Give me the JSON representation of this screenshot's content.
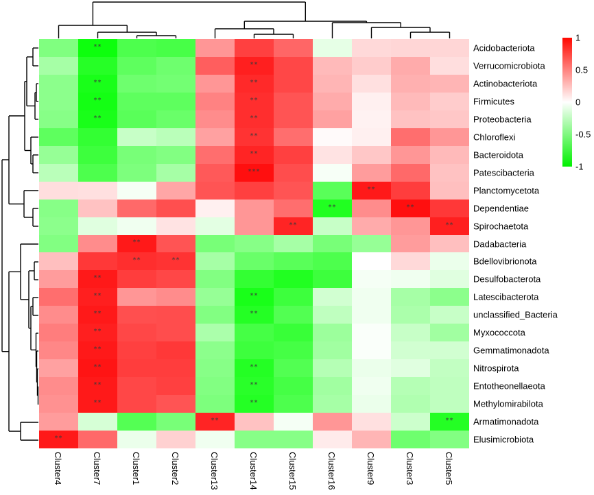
{
  "chart_data": {
    "type": "heatmap",
    "title": "",
    "legend_position": "right-top",
    "colormap": {
      "low": "#00ff00",
      "mid": "#ffffff",
      "high": "#ff0000",
      "range": [
        -1,
        1
      ]
    },
    "legend": {
      "tick_labels": [
        "1",
        "0.5",
        "0",
        "-0.5",
        "-1"
      ],
      "tick_values": [
        1,
        0.5,
        0,
        -0.5,
        -1
      ]
    },
    "columns": [
      "Cluster4",
      "Cluster7",
      "Cluster1",
      "Cluster2",
      "Cluster13",
      "Cluster14",
      "Cluster15",
      "Cluster16",
      "Cluster9",
      "Cluster3",
      "Cluster5"
    ],
    "rows": [
      "Acidobacteriota",
      "Verrucomicrobiota",
      "Actinobacteriota",
      "Firmicutes",
      "Proteobacteria",
      "Chloroflexi",
      "Bacteroidota",
      "Patescibacteria",
      "Planctomycetota",
      "Dependentiae",
      "Spirochaetota",
      "Dadabacteria",
      "Bdellovibrionota",
      "Desulfobacterota",
      "Latescibacterota",
      "unclassified_Bacteria",
      "Myxococcota",
      "Gemmatimonadota",
      "Nitrospirota",
      "Entotheonellaeota",
      "Methylomirabilota",
      "Armatimonadota",
      "Elusimicrobiota"
    ],
    "matrix": [
      [
        -0.5,
        -0.95,
        -0.7,
        -0.72,
        0.41,
        0.75,
        0.6,
        -0.1,
        0.15,
        0.16,
        0.16
      ],
      [
        -0.35,
        -0.85,
        -0.63,
        -0.57,
        0.63,
        0.88,
        0.72,
        0.27,
        0.2,
        0.33,
        0.13
      ],
      [
        -0.45,
        -0.9,
        -0.57,
        -0.55,
        0.41,
        0.84,
        0.72,
        0.29,
        0.12,
        0.31,
        0.29
      ],
      [
        -0.45,
        -0.92,
        -0.63,
        -0.63,
        0.49,
        0.82,
        0.67,
        0.33,
        0.06,
        0.27,
        0.2
      ],
      [
        -0.47,
        -0.9,
        -0.65,
        -0.59,
        0.45,
        0.82,
        0.67,
        0.37,
        0.05,
        0.24,
        0.22
      ],
      [
        -0.63,
        -0.8,
        -0.22,
        -0.27,
        0.37,
        0.8,
        0.57,
        0.02,
        0.06,
        0.57,
        0.41
      ],
      [
        -0.41,
        -0.76,
        -0.53,
        -0.49,
        0.57,
        0.86,
        0.75,
        0.11,
        0.22,
        0.41,
        0.27
      ],
      [
        -0.27,
        -0.7,
        -0.51,
        -0.35,
        0.65,
        0.94,
        0.7,
        -0.03,
        0.39,
        0.59,
        0.24
      ],
      [
        0.13,
        0.12,
        -0.04,
        0.35,
        0.67,
        0.75,
        0.67,
        -0.65,
        0.9,
        0.76,
        0.25
      ],
      [
        -0.47,
        0.24,
        0.59,
        0.69,
        0.06,
        0.41,
        0.57,
        -0.87,
        0.45,
        0.94,
        0.78
      ],
      [
        -0.45,
        -0.12,
        -0.06,
        0.11,
        -0.11,
        0.41,
        0.86,
        -0.22,
        0.33,
        0.41,
        0.88
      ],
      [
        -0.49,
        0.45,
        0.9,
        0.67,
        -0.53,
        -0.47,
        -0.35,
        -0.53,
        -0.41,
        0.39,
        0.25
      ],
      [
        0.25,
        0.78,
        0.82,
        0.8,
        -0.35,
        -0.59,
        -0.65,
        -0.7,
        0.0,
        0.15,
        -0.08
      ],
      [
        0.39,
        0.9,
        0.76,
        0.72,
        -0.49,
        -0.8,
        -0.87,
        -0.76,
        -0.04,
        -0.06,
        -0.12
      ],
      [
        0.57,
        0.88,
        0.41,
        0.45,
        -0.41,
        -0.9,
        -0.76,
        -0.18,
        -0.06,
        -0.35,
        -0.45
      ],
      [
        0.45,
        0.9,
        0.69,
        0.7,
        -0.49,
        -0.86,
        -0.68,
        -0.25,
        -0.06,
        -0.33,
        -0.22
      ],
      [
        0.51,
        0.88,
        0.72,
        0.7,
        -0.33,
        -0.73,
        -0.78,
        -0.39,
        -0.02,
        -0.22,
        -0.37
      ],
      [
        0.47,
        0.9,
        0.75,
        0.78,
        -0.45,
        -0.76,
        -0.73,
        -0.37,
        -0.02,
        -0.18,
        -0.18
      ],
      [
        0.37,
        0.92,
        0.76,
        0.76,
        -0.47,
        -0.86,
        -0.68,
        -0.29,
        -0.08,
        -0.12,
        -0.24
      ],
      [
        0.45,
        0.9,
        0.72,
        0.75,
        -0.49,
        -0.84,
        -0.73,
        -0.37,
        -0.06,
        -0.29,
        -0.25
      ],
      [
        0.43,
        0.9,
        0.72,
        0.67,
        -0.51,
        -0.86,
        -0.7,
        -0.35,
        -0.08,
        -0.31,
        -0.25
      ],
      [
        0.39,
        -0.16,
        -0.67,
        -0.53,
        0.86,
        0.24,
        -0.04,
        0.41,
        0.12,
        -0.2,
        -0.86
      ],
      [
        0.9,
        0.59,
        -0.08,
        0.18,
        -0.06,
        -0.47,
        -0.47,
        0.08,
        0.29,
        -0.57,
        -0.49
      ]
    ],
    "significance_marks": [
      {
        "row": 0,
        "col": 1,
        "mark": "**"
      },
      {
        "row": 1,
        "col": 5,
        "mark": "**"
      },
      {
        "row": 2,
        "col": 1,
        "mark": "**"
      },
      {
        "row": 2,
        "col": 5,
        "mark": "**"
      },
      {
        "row": 3,
        "col": 1,
        "mark": "**"
      },
      {
        "row": 3,
        "col": 5,
        "mark": "**"
      },
      {
        "row": 4,
        "col": 1,
        "mark": "**"
      },
      {
        "row": 4,
        "col": 5,
        "mark": "**"
      },
      {
        "row": 5,
        "col": 5,
        "mark": "**"
      },
      {
        "row": 6,
        "col": 5,
        "mark": "**"
      },
      {
        "row": 7,
        "col": 5,
        "mark": "***"
      },
      {
        "row": 8,
        "col": 8,
        "mark": "**"
      },
      {
        "row": 9,
        "col": 7,
        "mark": "**"
      },
      {
        "row": 9,
        "col": 9,
        "mark": "**"
      },
      {
        "row": 10,
        "col": 6,
        "mark": "**"
      },
      {
        "row": 10,
        "col": 10,
        "mark": "**"
      },
      {
        "row": 11,
        "col": 2,
        "mark": "**"
      },
      {
        "row": 12,
        "col": 2,
        "mark": "**"
      },
      {
        "row": 12,
        "col": 3,
        "mark": "**"
      },
      {
        "row": 13,
        "col": 1,
        "mark": "**"
      },
      {
        "row": 14,
        "col": 1,
        "mark": "**"
      },
      {
        "row": 14,
        "col": 5,
        "mark": "**"
      },
      {
        "row": 15,
        "col": 1,
        "mark": "**"
      },
      {
        "row": 15,
        "col": 5,
        "mark": "**"
      },
      {
        "row": 16,
        "col": 1,
        "mark": "**"
      },
      {
        "row": 17,
        "col": 1,
        "mark": "**"
      },
      {
        "row": 18,
        "col": 1,
        "mark": "**"
      },
      {
        "row": 18,
        "col": 5,
        "mark": "**"
      },
      {
        "row": 19,
        "col": 1,
        "mark": "**"
      },
      {
        "row": 19,
        "col": 5,
        "mark": "**"
      },
      {
        "row": 20,
        "col": 1,
        "mark": "**"
      },
      {
        "row": 20,
        "col": 5,
        "mark": "**"
      },
      {
        "row": 21,
        "col": 4,
        "mark": "**"
      },
      {
        "row": 21,
        "col": 10,
        "mark": "**"
      },
      {
        "row": 22,
        "col": 0,
        "mark": "**"
      }
    ],
    "column_dendrogram_segments": [
      [
        199.5,
        56,
        199.5,
        52
      ],
      [
        256.5,
        56,
        256.5,
        52
      ],
      [
        199.5,
        52,
        256.5,
        52
      ],
      [
        142.5,
        56,
        142.5,
        47
      ],
      [
        228,
        52,
        228,
        47
      ],
      [
        142.5,
        47,
        228,
        47
      ],
      [
        85.5,
        56,
        85.5,
        37
      ],
      [
        185.3,
        47,
        185.3,
        37
      ],
      [
        85.5,
        37,
        185.3,
        37
      ],
      [
        370.5,
        56,
        370.5,
        50
      ],
      [
        427.5,
        56,
        427.5,
        50
      ],
      [
        370.5,
        50,
        427.5,
        50
      ],
      [
        313.5,
        56,
        313.5,
        42
      ],
      [
        399,
        50,
        399,
        42
      ],
      [
        313.5,
        42,
        399,
        42
      ],
      [
        598.5,
        56,
        598.5,
        47
      ],
      [
        655.5,
        56,
        655.5,
        47
      ],
      [
        598.5,
        47,
        655.5,
        47
      ],
      [
        541.5,
        56,
        541.5,
        40
      ],
      [
        627,
        47,
        627,
        40
      ],
      [
        541.5,
        40,
        627,
        40
      ],
      [
        484.5,
        56,
        484.5,
        33
      ],
      [
        584.3,
        40,
        584.3,
        33
      ],
      [
        484.5,
        33,
        584.3,
        33
      ],
      [
        356.3,
        42,
        356.3,
        31
      ],
      [
        534.4,
        33,
        534.4,
        31
      ],
      [
        356.3,
        31,
        534.4,
        31
      ],
      [
        135.4,
        37,
        135.4,
        3
      ],
      [
        445.3,
        31,
        445.3,
        3
      ],
      [
        135.4,
        3,
        445.3,
        3
      ]
    ],
    "row_dendrogram_segments": [
      [
        56,
        70,
        48,
        70
      ],
      [
        56,
        96,
        48,
        96
      ],
      [
        48,
        70,
        48,
        96
      ],
      [
        56,
        122,
        53,
        122
      ],
      [
        56,
        148,
        53,
        148
      ],
      [
        53,
        122,
        53,
        148
      ],
      [
        53,
        135,
        51,
        135
      ],
      [
        56,
        174,
        51,
        174
      ],
      [
        51,
        135,
        51,
        174
      ],
      [
        48,
        83,
        39,
        83
      ],
      [
        51,
        154.5,
        39,
        154.5
      ],
      [
        39,
        83,
        39,
        154.5
      ],
      [
        56,
        226,
        48,
        226
      ],
      [
        56,
        252,
        48,
        252
      ],
      [
        48,
        226,
        48,
        252
      ],
      [
        56,
        200,
        45,
        200
      ],
      [
        48,
        239,
        45,
        239
      ],
      [
        45,
        200,
        45,
        239
      ],
      [
        39,
        118.8,
        36,
        118.8
      ],
      [
        45,
        219.5,
        36,
        219.5
      ],
      [
        36,
        118.8,
        36,
        219.5
      ],
      [
        56,
        304,
        48,
        304
      ],
      [
        56,
        330,
        48,
        330
      ],
      [
        48,
        304,
        48,
        330
      ],
      [
        56,
        278,
        35,
        278
      ],
      [
        48,
        317,
        35,
        317
      ],
      [
        35,
        278,
        35,
        317
      ],
      [
        36,
        169,
        13,
        169
      ],
      [
        35,
        297.5,
        13,
        297.5
      ],
      [
        13,
        169,
        13,
        297.5
      ],
      [
        56,
        382,
        50,
        382
      ],
      [
        56,
        408,
        50,
        408
      ],
      [
        50,
        382,
        50,
        408
      ],
      [
        56,
        434,
        48,
        434
      ],
      [
        56,
        460,
        48,
        460
      ],
      [
        48,
        434,
        48,
        460
      ],
      [
        56,
        564,
        55.5,
        564
      ],
      [
        56,
        590,
        55.5,
        590
      ],
      [
        55.5,
        564,
        55.5,
        590
      ],
      [
        56,
        538,
        54.5,
        538
      ],
      [
        55.5,
        577,
        54.5,
        577
      ],
      [
        54.5,
        538,
        54.5,
        577
      ],
      [
        56,
        512,
        53.5,
        512
      ],
      [
        54.5,
        557.5,
        53.5,
        557.5
      ],
      [
        53.5,
        512,
        53.5,
        557.5
      ],
      [
        56,
        486,
        52.5,
        486
      ],
      [
        53.5,
        534.8,
        52.5,
        534.8
      ],
      [
        52.5,
        486,
        52.5,
        534.8
      ],
      [
        48,
        447,
        45,
        447
      ],
      [
        52.5,
        510.4,
        45,
        510.4
      ],
      [
        45,
        447,
        45,
        510.4
      ],
      [
        50,
        395,
        42,
        395
      ],
      [
        45,
        478.7,
        42,
        478.7
      ],
      [
        42,
        395,
        42,
        478.7
      ],
      [
        56,
        356,
        30,
        356
      ],
      [
        42,
        436.9,
        30,
        436.9
      ],
      [
        30,
        356,
        30,
        436.9
      ],
      [
        56,
        616,
        30,
        616
      ],
      [
        56,
        642,
        30,
        642
      ],
      [
        30,
        616,
        30,
        642
      ],
      [
        30,
        396.4,
        13,
        396.4
      ],
      [
        30,
        629,
        13,
        629
      ],
      [
        13,
        396.4,
        13,
        629
      ],
      [
        13,
        233,
        3,
        233
      ],
      [
        13,
        512.7,
        3,
        512.7
      ],
      [
        3,
        233,
        3,
        512.7
      ]
    ]
  }
}
